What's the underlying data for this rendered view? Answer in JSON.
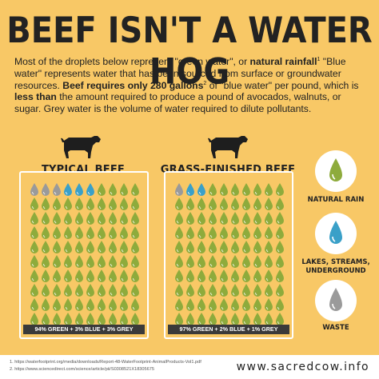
{
  "title": "BEEF ISN'T A WATER HOG",
  "intro": {
    "t1": "Most of the droplets below represent \"green water\", or ",
    "b1": "natural rainfall",
    "s1": "1",
    "t2": " \"Blue water\" represents water that has been sourced from surface or groundwater resources. ",
    "b2": "Beef requires only 280 gallons",
    "s2": "2",
    "t3": " of \"blue water\" per pound, which is ",
    "b3": "less than",
    "t4": " the amount required to produce a pound of avocados, walnuts, or sugar. Grey water is the volume of water required to dilute pollutants."
  },
  "panels": [
    {
      "title": "TYPICAL BEEF",
      "caption": "94% GREEN + 3% BLUE + 3% GREY",
      "green": 94,
      "blue": 3,
      "grey": 3
    },
    {
      "title": "GRASS-FINISHED BEEF",
      "caption": "97% GREEN + 2% BLUE + 1% GREY",
      "green": 97,
      "blue": 2,
      "grey": 1
    }
  ],
  "legend": [
    {
      "label": "NATURAL RAIN",
      "icon": "green-drop-icon"
    },
    {
      "label": "LAKES, STREAMS, UNDERGROUND",
      "icon": "blue-drop-icon"
    },
    {
      "label": "WASTE",
      "icon": "grey-drop-icon"
    }
  ],
  "colors": {
    "background": "#f8c866",
    "green": "#8eab3c",
    "blue": "#3aa0c8",
    "grey": "#9a9a9a",
    "dark": "#3a3a3a"
  },
  "footnotes": [
    "1. https://waterfootprint.org/media/downloads/Report-48-WaterFootprint-AnimalProducts-Vol1.pdf",
    "2. https://www.sciencedirect.com/science/article/pii/S0308521X18305675"
  ],
  "website": "www.sacredcow.info"
}
